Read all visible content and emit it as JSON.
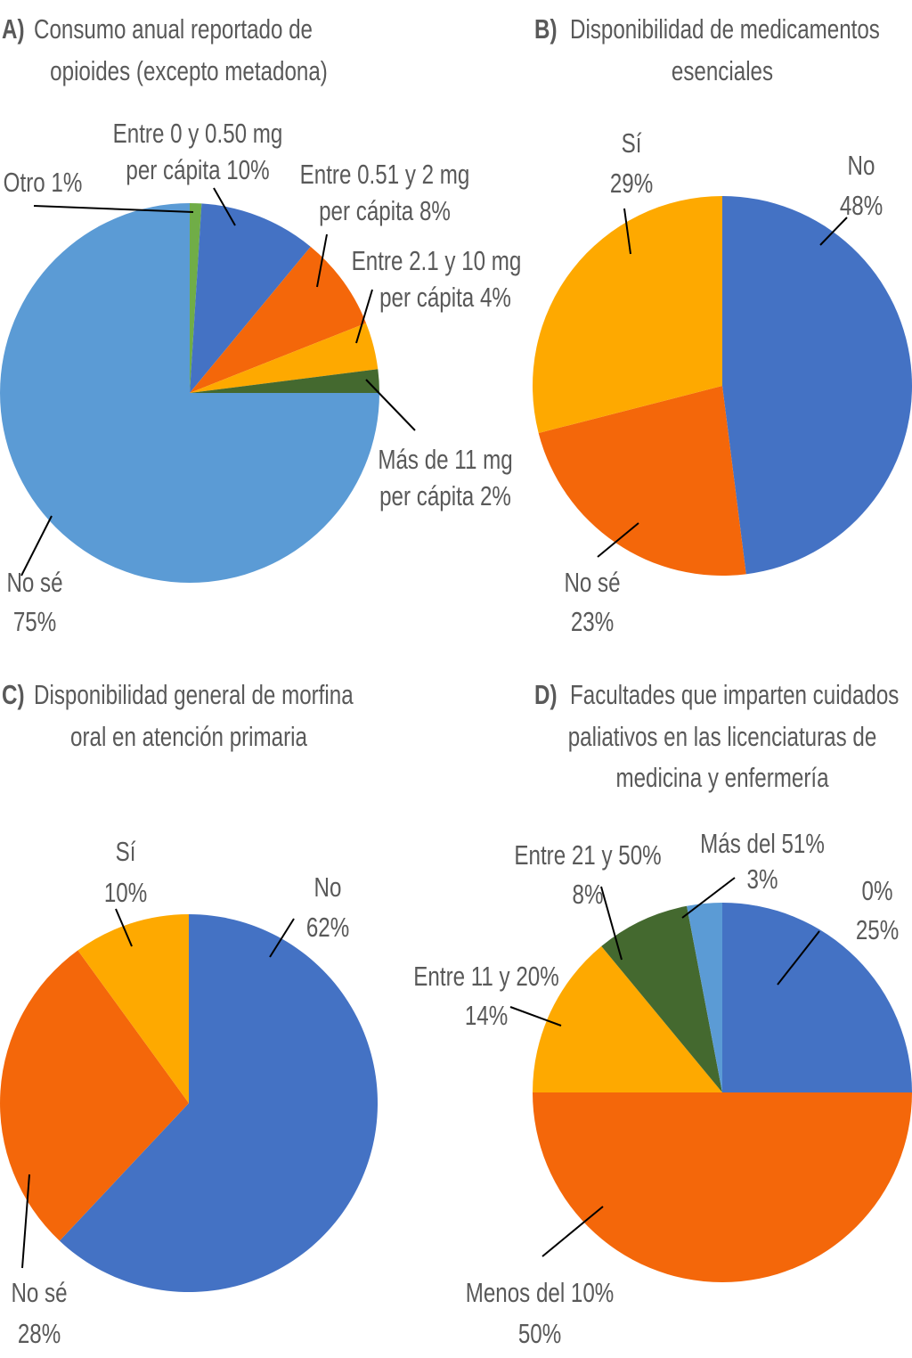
{
  "chart_data": [
    {
      "type": "pie",
      "panel_letter": "A)",
      "title_lines": [
        "Consumo anual reportado de",
        "opioides (excepto metadona)"
      ],
      "start": "12 o'clock",
      "direction": "clockwise",
      "slices": [
        {
          "label_lines": [
            "Otro 1%"
          ],
          "name": "Otro",
          "value": 1,
          "color": "#70AD47"
        },
        {
          "label_lines": [
            "Entre 0 y 0.50 mg",
            "per cápita 10%"
          ],
          "name": "Entre 0 y 0.50 mg per cápita",
          "value": 10,
          "color": "#4472C4"
        },
        {
          "label_lines": [
            "Entre 0.51 y 2 mg",
            "per cápita 8%"
          ],
          "name": "Entre 0.51 y 2 mg per cápita",
          "value": 8,
          "color": "#F4670A"
        },
        {
          "label_lines": [
            "Entre 2.1 y 10 mg",
            "per cápita 4%"
          ],
          "name": "Entre 2.1 y 10 mg per cápita",
          "value": 4,
          "color": "#FEA900"
        },
        {
          "label_lines": [
            "Más de 11 mg",
            "per cápita 2%"
          ],
          "name": "Más de 11 mg per cápita",
          "value": 2,
          "color": "#44692F"
        },
        {
          "label_lines": [
            "No  sé",
            "75%"
          ],
          "name": "No sé",
          "value": 75,
          "color": "#5B9BD5"
        }
      ]
    },
    {
      "type": "pie",
      "panel_letter": "B)",
      "title_lines": [
        "Disponibilidad de medicamentos",
        "esenciales"
      ],
      "start": "12 o'clock",
      "direction": "clockwise",
      "slices": [
        {
          "label_lines": [
            "No",
            "48%"
          ],
          "name": "No",
          "value": 48,
          "color": "#4472C4"
        },
        {
          "label_lines": [
            "No sé",
            "23%"
          ],
          "name": "No sé",
          "value": 23,
          "color": "#F4670A"
        },
        {
          "label_lines": [
            "Sí",
            "29%"
          ],
          "name": "Sí",
          "value": 29,
          "color": "#FEA900"
        }
      ]
    },
    {
      "type": "pie",
      "panel_letter": "C)",
      "title_lines": [
        "Disponibilidad general de morfina",
        "oral en atención primaria"
      ],
      "start": "12 o'clock",
      "direction": "clockwise",
      "slices": [
        {
          "label_lines": [
            "No",
            "62%"
          ],
          "name": "No",
          "value": 62,
          "color": "#4472C4"
        },
        {
          "label_lines": [
            "No sé",
            "28%"
          ],
          "name": "No sé",
          "value": 28,
          "color": "#F4670A"
        },
        {
          "label_lines": [
            "Sí",
            "10%"
          ],
          "name": "Sí",
          "value": 10,
          "color": "#FEA900"
        }
      ]
    },
    {
      "type": "pie",
      "panel_letter": "D)",
      "title_lines": [
        "Facultades que imparten cuidados",
        "paliativos en las licenciaturas de",
        "medicina y enfermería"
      ],
      "start": "12 o'clock",
      "direction": "clockwise",
      "slices": [
        {
          "label_lines": [
            "0%",
            "25%"
          ],
          "name": "0%",
          "value": 25,
          "color": "#4472C4"
        },
        {
          "label_lines": [
            "Menos del 10%",
            "50%"
          ],
          "name": "Menos del 10%",
          "value": 50,
          "color": "#F4670A"
        },
        {
          "label_lines": [
            "Entre 11 y 20%",
            "14%"
          ],
          "name": "Entre 11 y 20%",
          "value": 14,
          "color": "#FEA900"
        },
        {
          "label_lines": [
            "Entre 21 y 50%",
            "8%"
          ],
          "name": "Entre 21 y 50%",
          "value": 8,
          "color": "#44692F"
        },
        {
          "label_lines": [
            "Más del 51%",
            "3%"
          ],
          "name": "Más del 51%",
          "value": 3,
          "color": "#5B9BD5"
        }
      ]
    }
  ]
}
